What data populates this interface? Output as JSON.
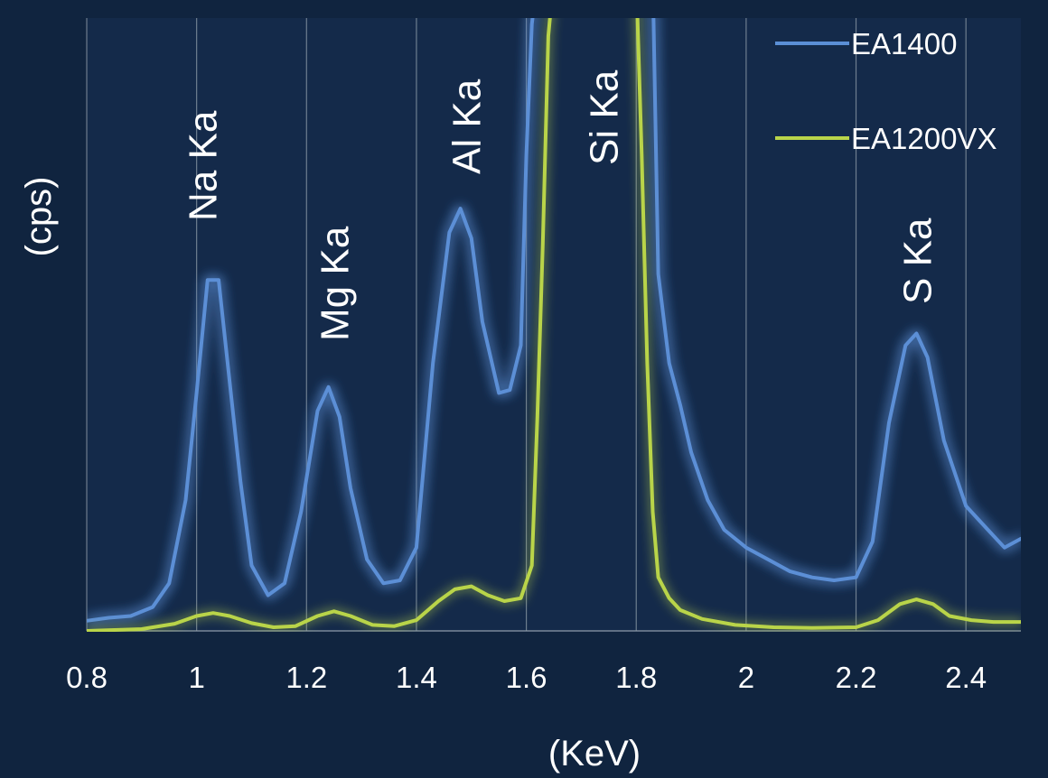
{
  "chart_data": {
    "type": "line",
    "xlabel": "(KeV)",
    "ylabel": "(cps)",
    "xlim": [
      0.8,
      2.5
    ],
    "ylim": [
      0,
      100
    ],
    "x_ticks": [
      "0.8",
      "1",
      "1.2",
      "1.4",
      "1.6",
      "1.8",
      "2",
      "2.2",
      "2.4"
    ],
    "x_tick_values": [
      0.8,
      1.0,
      1.2,
      1.4,
      1.6,
      1.8,
      2.0,
      2.2,
      2.4
    ],
    "grid": "vertical",
    "legend_position": "top-right",
    "annotations": [
      {
        "text": "Na Ka",
        "x": 1.01
      },
      {
        "text": "Mg Ka",
        "x": 1.25
      },
      {
        "text": "Al Ka",
        "x": 1.49
      },
      {
        "text": "Si Ka",
        "x": 1.74
      },
      {
        "text": "S Ka",
        "x": 2.31
      }
    ],
    "series": [
      {
        "name": "EA1400",
        "color": "#5b8fd6",
        "x": [
          0.8,
          0.84,
          0.88,
          0.92,
          0.95,
          0.98,
          1.0,
          1.02,
          1.04,
          1.06,
          1.08,
          1.1,
          1.13,
          1.16,
          1.19,
          1.22,
          1.24,
          1.26,
          1.28,
          1.31,
          1.34,
          1.37,
          1.4,
          1.43,
          1.46,
          1.48,
          1.5,
          1.52,
          1.55,
          1.57,
          1.59,
          1.6,
          1.61,
          1.62,
          1.83,
          1.84,
          1.86,
          1.88,
          1.9,
          1.93,
          1.96,
          2.0,
          2.04,
          2.08,
          2.12,
          2.16,
          2.2,
          2.23,
          2.26,
          2.29,
          2.31,
          2.33,
          2.36,
          2.4,
          2.44,
          2.47,
          2.5
        ],
        "values": [
          1.7,
          2.2,
          2.5,
          4.0,
          8.0,
          22.0,
          40.0,
          59.0,
          59.0,
          42.0,
          25.0,
          11.0,
          6.0,
          8.0,
          20.0,
          37.0,
          41.0,
          36.0,
          24.0,
          12.0,
          8.0,
          8.5,
          14.0,
          45.0,
          67.0,
          71.0,
          66.0,
          52.0,
          40.0,
          40.5,
          48.0,
          80.0,
          102.0,
          110.0,
          110.0,
          60.0,
          45.0,
          38.0,
          30.0,
          22.0,
          17.0,
          14.0,
          12.0,
          10.0,
          9.0,
          8.5,
          9.0,
          15.0,
          35.0,
          48.0,
          50.0,
          46.0,
          32.0,
          21.0,
          17.0,
          14.0,
          15.5
        ]
      },
      {
        "name": "EA1200VX",
        "color": "#b9d44a",
        "x": [
          0.8,
          0.9,
          0.96,
          1.0,
          1.03,
          1.06,
          1.1,
          1.14,
          1.18,
          1.22,
          1.25,
          1.28,
          1.32,
          1.36,
          1.4,
          1.44,
          1.47,
          1.5,
          1.53,
          1.56,
          1.59,
          1.61,
          1.62,
          1.63,
          1.64,
          1.65,
          1.8,
          1.81,
          1.82,
          1.83,
          1.84,
          1.86,
          1.88,
          1.92,
          1.98,
          2.05,
          2.12,
          2.2,
          2.24,
          2.28,
          2.31,
          2.34,
          2.37,
          2.41,
          2.45,
          2.5
        ],
        "values": [
          0.0,
          0.3,
          1.2,
          2.5,
          3.0,
          2.5,
          1.3,
          0.6,
          0.8,
          2.5,
          3.3,
          2.5,
          1.0,
          0.8,
          1.8,
          5.0,
          7.0,
          7.5,
          6.0,
          5.0,
          5.5,
          11.0,
          36.0,
          65.0,
          100.0,
          110.0,
          110.0,
          80.0,
          45.0,
          20.0,
          9.0,
          5.5,
          3.5,
          2.0,
          1.0,
          0.6,
          0.5,
          0.6,
          1.8,
          4.5,
          5.3,
          4.5,
          2.5,
          1.8,
          1.5,
          1.5
        ]
      }
    ]
  }
}
